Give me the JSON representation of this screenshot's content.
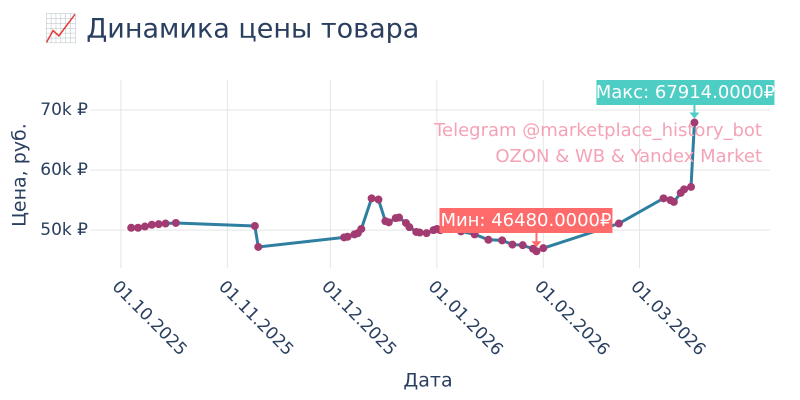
{
  "chart_data": {
    "type": "line",
    "title": "📈 Динамика цены товара",
    "x_label": "Дата",
    "y_label": "Цена, руб.",
    "annotations": {
      "max": "Макс: 67914.0000₽",
      "min": "Мин: 46480.0000₽",
      "watermark": [
        "Telegram @marketplace_history_bot",
        "OZON & WB & Yandex Market"
      ]
    },
    "x": [
      "2025-10-04",
      "2025-10-06",
      "2025-10-08",
      "2025-10-10",
      "2025-10-12",
      "2025-10-14",
      "2025-10-17",
      "2025-11-09",
      "2025-11-10",
      "2025-12-05",
      "2025-12-06",
      "2025-12-08",
      "2025-12-09",
      "2025-12-10",
      "2025-12-13",
      "2025-12-15",
      "2025-12-17",
      "2025-12-18",
      "2025-12-20",
      "2025-12-21",
      "2025-12-23",
      "2025-12-24",
      "2025-12-26",
      "2025-12-27",
      "2025-12-29",
      "2025-12-31",
      "2026-01-01",
      "2026-01-02",
      "2026-01-08",
      "2026-01-12",
      "2026-01-16",
      "2026-01-20",
      "2026-01-23",
      "2026-01-26",
      "2026-01-29",
      "2026-01-30",
      "2026-02-01",
      "2026-02-23",
      "2026-03-08",
      "2026-03-10",
      "2026-03-11",
      "2026-03-13",
      "2026-03-14",
      "2026-03-16",
      "2026-03-17"
    ],
    "series": [
      {
        "name": "Цена",
        "color": "#2e7fa0",
        "marker_color": "#a23b72",
        "values": [
          50400,
          50400,
          50600,
          50900,
          51000,
          51100,
          51200,
          50700,
          47200,
          48800,
          48900,
          49300,
          49500,
          50200,
          55300,
          55100,
          51500,
          51300,
          52000,
          52100,
          51200,
          50500,
          49700,
          49600,
          49500,
          50000,
          50200,
          50000,
          49800,
          49300,
          48400,
          48300,
          47600,
          47500,
          46900,
          46480,
          47000,
          51100,
          55300,
          55000,
          54700,
          56200,
          56800,
          57200,
          67914
        ]
      }
    ],
    "xlim": [
      "2025-09-22",
      "2026-04-08"
    ],
    "xticks": [
      {
        "value": "2025-10-01",
        "label": "01.10.2025"
      },
      {
        "value": "2025-11-01",
        "label": "01.11.2025"
      },
      {
        "value": "2025-12-01",
        "label": "01.12.2025"
      },
      {
        "value": "2026-01-01",
        "label": "01.01.2026"
      },
      {
        "value": "2026-02-01",
        "label": "01.02.2026"
      },
      {
        "value": "2026-03-01",
        "label": "01.03.2026"
      }
    ],
    "ylim": [
      43700,
      75000
    ],
    "yticks": [
      {
        "value": 50000,
        "label": "50k ₽"
      },
      {
        "value": 60000,
        "label": "60k ₽"
      },
      {
        "value": 70000,
        "label": "70k ₽"
      }
    ],
    "grid": true
  }
}
